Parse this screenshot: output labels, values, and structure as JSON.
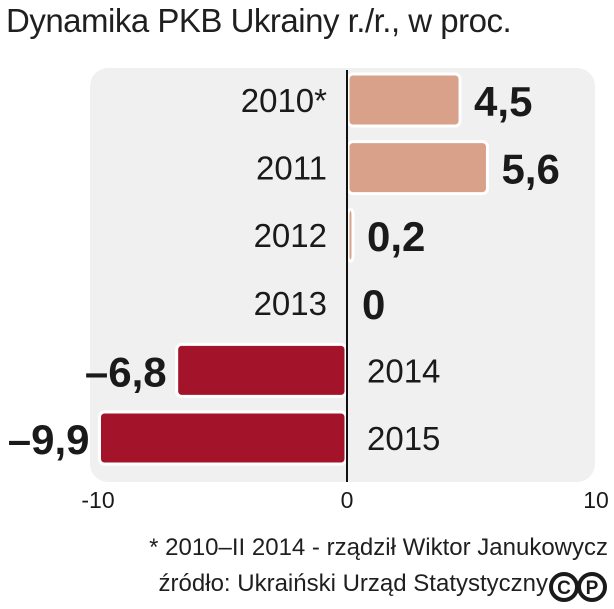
{
  "title": "Dynamika PKB Ukrainy r./r., w proc.",
  "note": "* 2010–II 2014 - rządził Wiktor Janukowycz",
  "source": "źródło: Ukraiński Urząd Statystyczny",
  "colors": {
    "positive": "#d9a08a",
    "negative": "#a3142a",
    "panel": "#f0f0f0",
    "axis": "#111111"
  },
  "chart_data": {
    "type": "bar",
    "orientation": "horizontal",
    "categories": [
      "2010*",
      "2011",
      "2012",
      "2013",
      "2014",
      "2015"
    ],
    "values": [
      4.5,
      5.6,
      0.2,
      0,
      -6.8,
      -9.9
    ],
    "value_labels": [
      "4,5",
      "5,6",
      "0,2",
      "0",
      "–6,8",
      "–9,9"
    ],
    "xlim": [
      -10,
      10
    ],
    "xticks": [
      "-10",
      "0",
      "10"
    ],
    "title": "Dynamika PKB Ukrainy r./r., w proc.",
    "grid": false
  }
}
